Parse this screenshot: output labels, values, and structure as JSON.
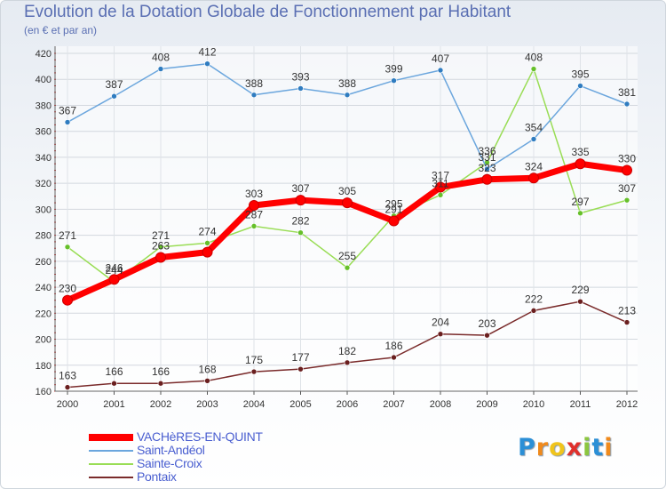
{
  "title": "Evolution de la Dotation Globale de Fonctionnement par Habitant",
  "subtitle": "(en € et par an)",
  "logo": {
    "text": "Proxiti",
    "letters": [
      "P",
      "r",
      "o",
      "x",
      "i",
      "t",
      "i"
    ],
    "colors": [
      "#2b8fd6",
      "#f08a1c",
      "#f0c41c",
      "#e0302c",
      "#8cc63f",
      "#2b8fd6",
      "#f08a1c"
    ]
  },
  "chart_data": {
    "type": "line",
    "title": "Evolution de la Dotation Globale de Fonctionnement par Habitant",
    "subtitle": "(en € et par an)",
    "xlabel": "",
    "ylabel": "",
    "ylim": [
      160,
      420
    ],
    "yticks": [
      "160",
      "180",
      "200",
      "220",
      "240",
      "260",
      "280",
      "300",
      "320",
      "340",
      "360",
      "380",
      "400",
      "420"
    ],
    "categories": [
      "2000",
      "2001",
      "2002",
      "2003",
      "2004",
      "2005",
      "2006",
      "2007",
      "2008",
      "2009",
      "2010",
      "2011",
      "2012"
    ],
    "grid": true,
    "legend_position": "bottom-left",
    "series": [
      {
        "name": "VACHèRES-EN-QUINT",
        "color": "#ff0000",
        "marker_color": "#ff0000",
        "width": 7,
        "values": [
          230,
          246,
          263,
          267,
          303,
          307,
          305,
          291,
          317,
          323,
          324,
          335,
          330
        ],
        "labels": [
          "230",
          "246",
          "263",
          "",
          "303",
          "307",
          "305",
          "291",
          "317",
          "323",
          "324",
          "335",
          "330"
        ]
      },
      {
        "name": "Saint-Andéol",
        "color": "#6ba6dd",
        "marker_color": "#2f7cc0",
        "width": 1.5,
        "values": [
          367,
          387,
          408,
          412,
          388,
          393,
          388,
          399,
          407,
          331,
          354,
          395,
          381
        ],
        "labels": [
          "367",
          "387",
          "408",
          "412",
          "388",
          "393",
          "388",
          "399",
          "407",
          "331",
          "354",
          "395",
          "381"
        ]
      },
      {
        "name": "Sainte-Croix",
        "color": "#99dd55",
        "marker_color": "#66c02a",
        "width": 1.5,
        "values": [
          271,
          244,
          271,
          274,
          287,
          282,
          255,
          295,
          311,
          336,
          408,
          297,
          307
        ],
        "labels": [
          "271",
          "244",
          "271",
          "274",
          "287",
          "282",
          "255",
          "295",
          "311",
          "336",
          "408",
          "297",
          "307"
        ]
      },
      {
        "name": "Pontaix",
        "color": "#7a2b2b",
        "marker_color": "#6a1f1f",
        "width": 1.5,
        "values": [
          163,
          166,
          166,
          168,
          175,
          177,
          182,
          186,
          204,
          203,
          222,
          229,
          213
        ],
        "labels": [
          "163",
          "166",
          "166",
          "168",
          "175",
          "177",
          "182",
          "186",
          "204",
          "203",
          "222",
          "229",
          "213"
        ]
      }
    ]
  }
}
